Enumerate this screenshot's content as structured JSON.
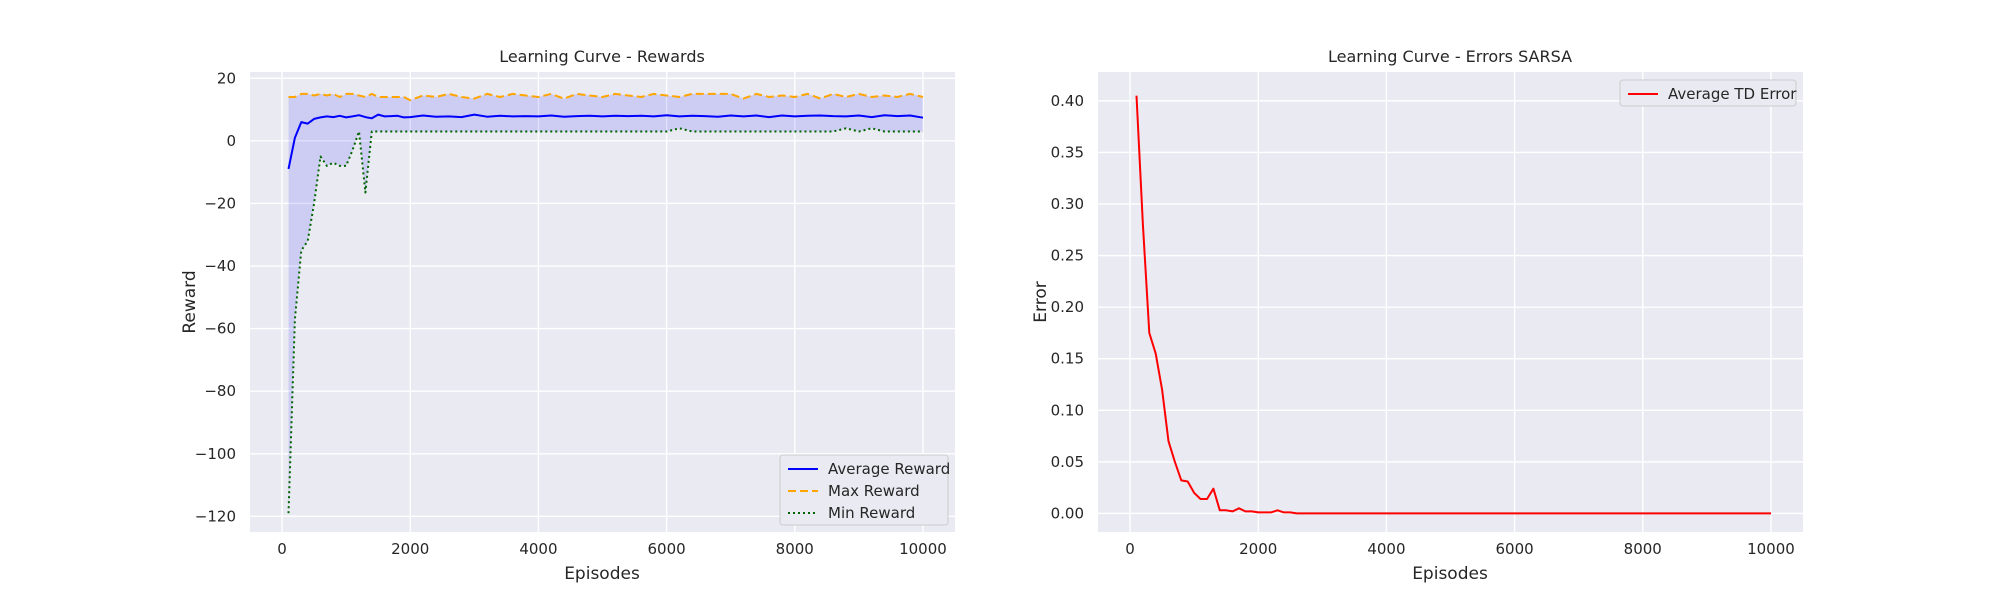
{
  "chart_data": [
    {
      "type": "line",
      "title": "Learning Curve - Rewards",
      "xlabel": "Episodes",
      "ylabel": "Reward",
      "xlim": [
        -500,
        10500
      ],
      "ylim": [
        -125,
        22
      ],
      "xticks": [
        0,
        2000,
        4000,
        6000,
        8000,
        10000
      ],
      "yticks": [
        20,
        0,
        -20,
        -40,
        -60,
        -80,
        -100,
        -120
      ],
      "grid": true,
      "legend": "bottom-right",
      "shaded_band": {
        "between": [
          "Min Reward",
          "Max Reward"
        ],
        "color": "#0000ff",
        "opacity": 0.12
      },
      "x": [
        100,
        200,
        300,
        400,
        500,
        600,
        700,
        800,
        900,
        1000,
        1100,
        1200,
        1300,
        1400,
        1500,
        1600,
        1700,
        1800,
        1900,
        2000,
        2200,
        2400,
        2600,
        2800,
        3000,
        3200,
        3400,
        3600,
        3800,
        4000,
        4200,
        4400,
        4600,
        4800,
        5000,
        5200,
        5400,
        5600,
        5800,
        6000,
        6200,
        6400,
        6600,
        6800,
        7000,
        7200,
        7400,
        7600,
        7800,
        8000,
        8200,
        8400,
        8600,
        8800,
        9000,
        9200,
        9400,
        9600,
        9800,
        10000
      ],
      "series": [
        {
          "name": "Average Reward",
          "color": "#0000ff",
          "style": "solid",
          "values": [
            -9,
            1,
            6,
            5.5,
            7,
            7.5,
            7.8,
            7.6,
            8,
            7.5,
            7.8,
            8.2,
            7.6,
            7.2,
            8.4,
            7.8,
            7.9,
            8,
            7.5,
            7.6,
            8.1,
            7.7,
            7.8,
            7.6,
            8.4,
            7.7,
            8,
            7.8,
            7.9,
            7.8,
            8.1,
            7.7,
            7.9,
            8,
            7.8,
            8,
            7.9,
            8,
            7.8,
            8.2,
            7.8,
            8,
            7.9,
            7.7,
            8.1,
            7.8,
            8.1,
            7.6,
            8.1,
            7.8,
            8,
            8.1,
            7.9,
            7.8,
            8.1,
            7.6,
            8.2,
            7.9,
            8.1,
            7.4
          ]
        },
        {
          "name": "Max Reward",
          "color": "#ffa500",
          "style": "dashed",
          "values": [
            14,
            14,
            15,
            15,
            14.5,
            15,
            14.5,
            15,
            14,
            15,
            15,
            14.5,
            14,
            15,
            14,
            14,
            14,
            14,
            14,
            13,
            14.5,
            14,
            15,
            14,
            13.5,
            15,
            14,
            15,
            14.5,
            14,
            15,
            13.5,
            15,
            14.5,
            14,
            15,
            14.5,
            14,
            15,
            14.5,
            14,
            15,
            15,
            15,
            15,
            13.5,
            15,
            14,
            14.5,
            14,
            15,
            13.5,
            15,
            14,
            15,
            14,
            14.5,
            14,
            15,
            14
          ]
        },
        {
          "name": "Min Reward",
          "color": "#006400",
          "style": "dotted",
          "values": [
            -119,
            -57,
            -35,
            -32,
            -20,
            -5,
            -8,
            -7,
            -8,
            -8,
            -3,
            3,
            -16.5,
            3,
            3,
            3,
            3,
            3,
            3,
            3,
            3,
            3,
            3,
            3,
            3,
            3,
            3,
            3,
            3,
            3,
            3,
            3,
            3,
            3,
            3,
            3,
            3,
            3,
            3,
            3,
            4,
            3,
            3,
            3,
            3,
            3,
            3,
            3,
            3,
            3,
            3,
            3,
            3,
            4,
            3,
            4,
            3,
            3,
            3,
            3
          ]
        }
      ]
    },
    {
      "type": "line",
      "title": "Learning Curve - Errors SARSA",
      "xlabel": "Episodes",
      "ylabel": "Error",
      "xlim": [
        -500,
        10500
      ],
      "ylim": [
        -0.018,
        0.428
      ],
      "xticks": [
        0,
        2000,
        4000,
        6000,
        8000,
        10000
      ],
      "yticks": [
        0.0,
        0.05,
        0.1,
        0.15,
        0.2,
        0.25,
        0.3,
        0.35,
        0.4
      ],
      "grid": true,
      "legend": "top-right",
      "x": [
        100,
        200,
        300,
        400,
        500,
        600,
        700,
        800,
        900,
        1000,
        1100,
        1200,
        1300,
        1400,
        1500,
        1600,
        1700,
        1800,
        1900,
        2000,
        2100,
        2200,
        2300,
        2400,
        2500,
        2600,
        3000,
        4000,
        5000,
        6000,
        7000,
        8000,
        9000,
        10000
      ],
      "series": [
        {
          "name": "Average TD Error",
          "color": "#ff0000",
          "style": "solid",
          "values": [
            0.405,
            0.28,
            0.175,
            0.155,
            0.12,
            0.07,
            0.05,
            0.032,
            0.031,
            0.02,
            0.014,
            0.014,
            0.024,
            0.003,
            0.003,
            0.002,
            0.005,
            0.002,
            0.002,
            0.001,
            0.001,
            0.001,
            0.003,
            0.001,
            0.001,
            0.0,
            0.0,
            0.0,
            0.0,
            0.0,
            0.0,
            0.0,
            0.0,
            0.0
          ]
        }
      ]
    }
  ]
}
